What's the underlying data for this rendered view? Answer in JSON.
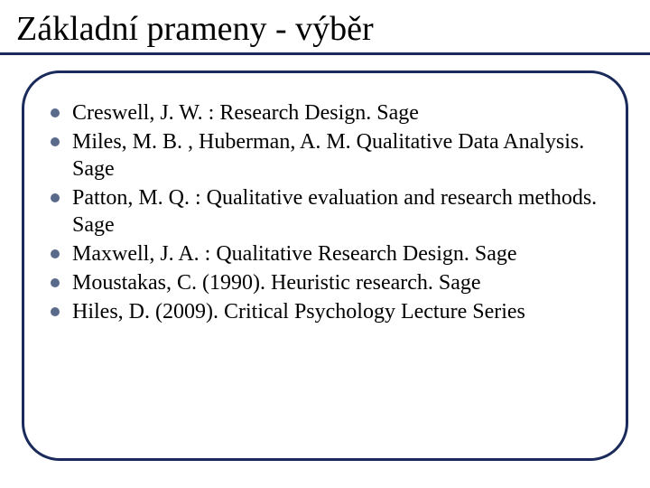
{
  "slide": {
    "title": "Základní prameny - výběr",
    "title_fontsize": 38,
    "title_font": "serif",
    "title_color": "#000000",
    "underline_color": "#1a2a5a",
    "frame_border_color": "#1a2a5a",
    "frame_border_width": 3,
    "frame_border_radius": 42,
    "bullet_dot_color": "#5a6a8a",
    "bullet_fontsize": 24,
    "bullet_color": "#000000",
    "background_color": "#ffffff",
    "bullets": [
      "Creswell, J. W. : Research Design. Sage",
      "Miles, M. B. , Huberman, A. M. Qualitative Data Analysis. Sage",
      "Patton, M. Q. :  Qualitative evaluation and research methods. Sage",
      "Maxwell, J. A. : Qualitative Research Design. Sage",
      "Moustakas, C. (1990). Heuristic research. Sage",
      "Hiles, D. (2009). Critical Psychology Lecture Series"
    ]
  }
}
